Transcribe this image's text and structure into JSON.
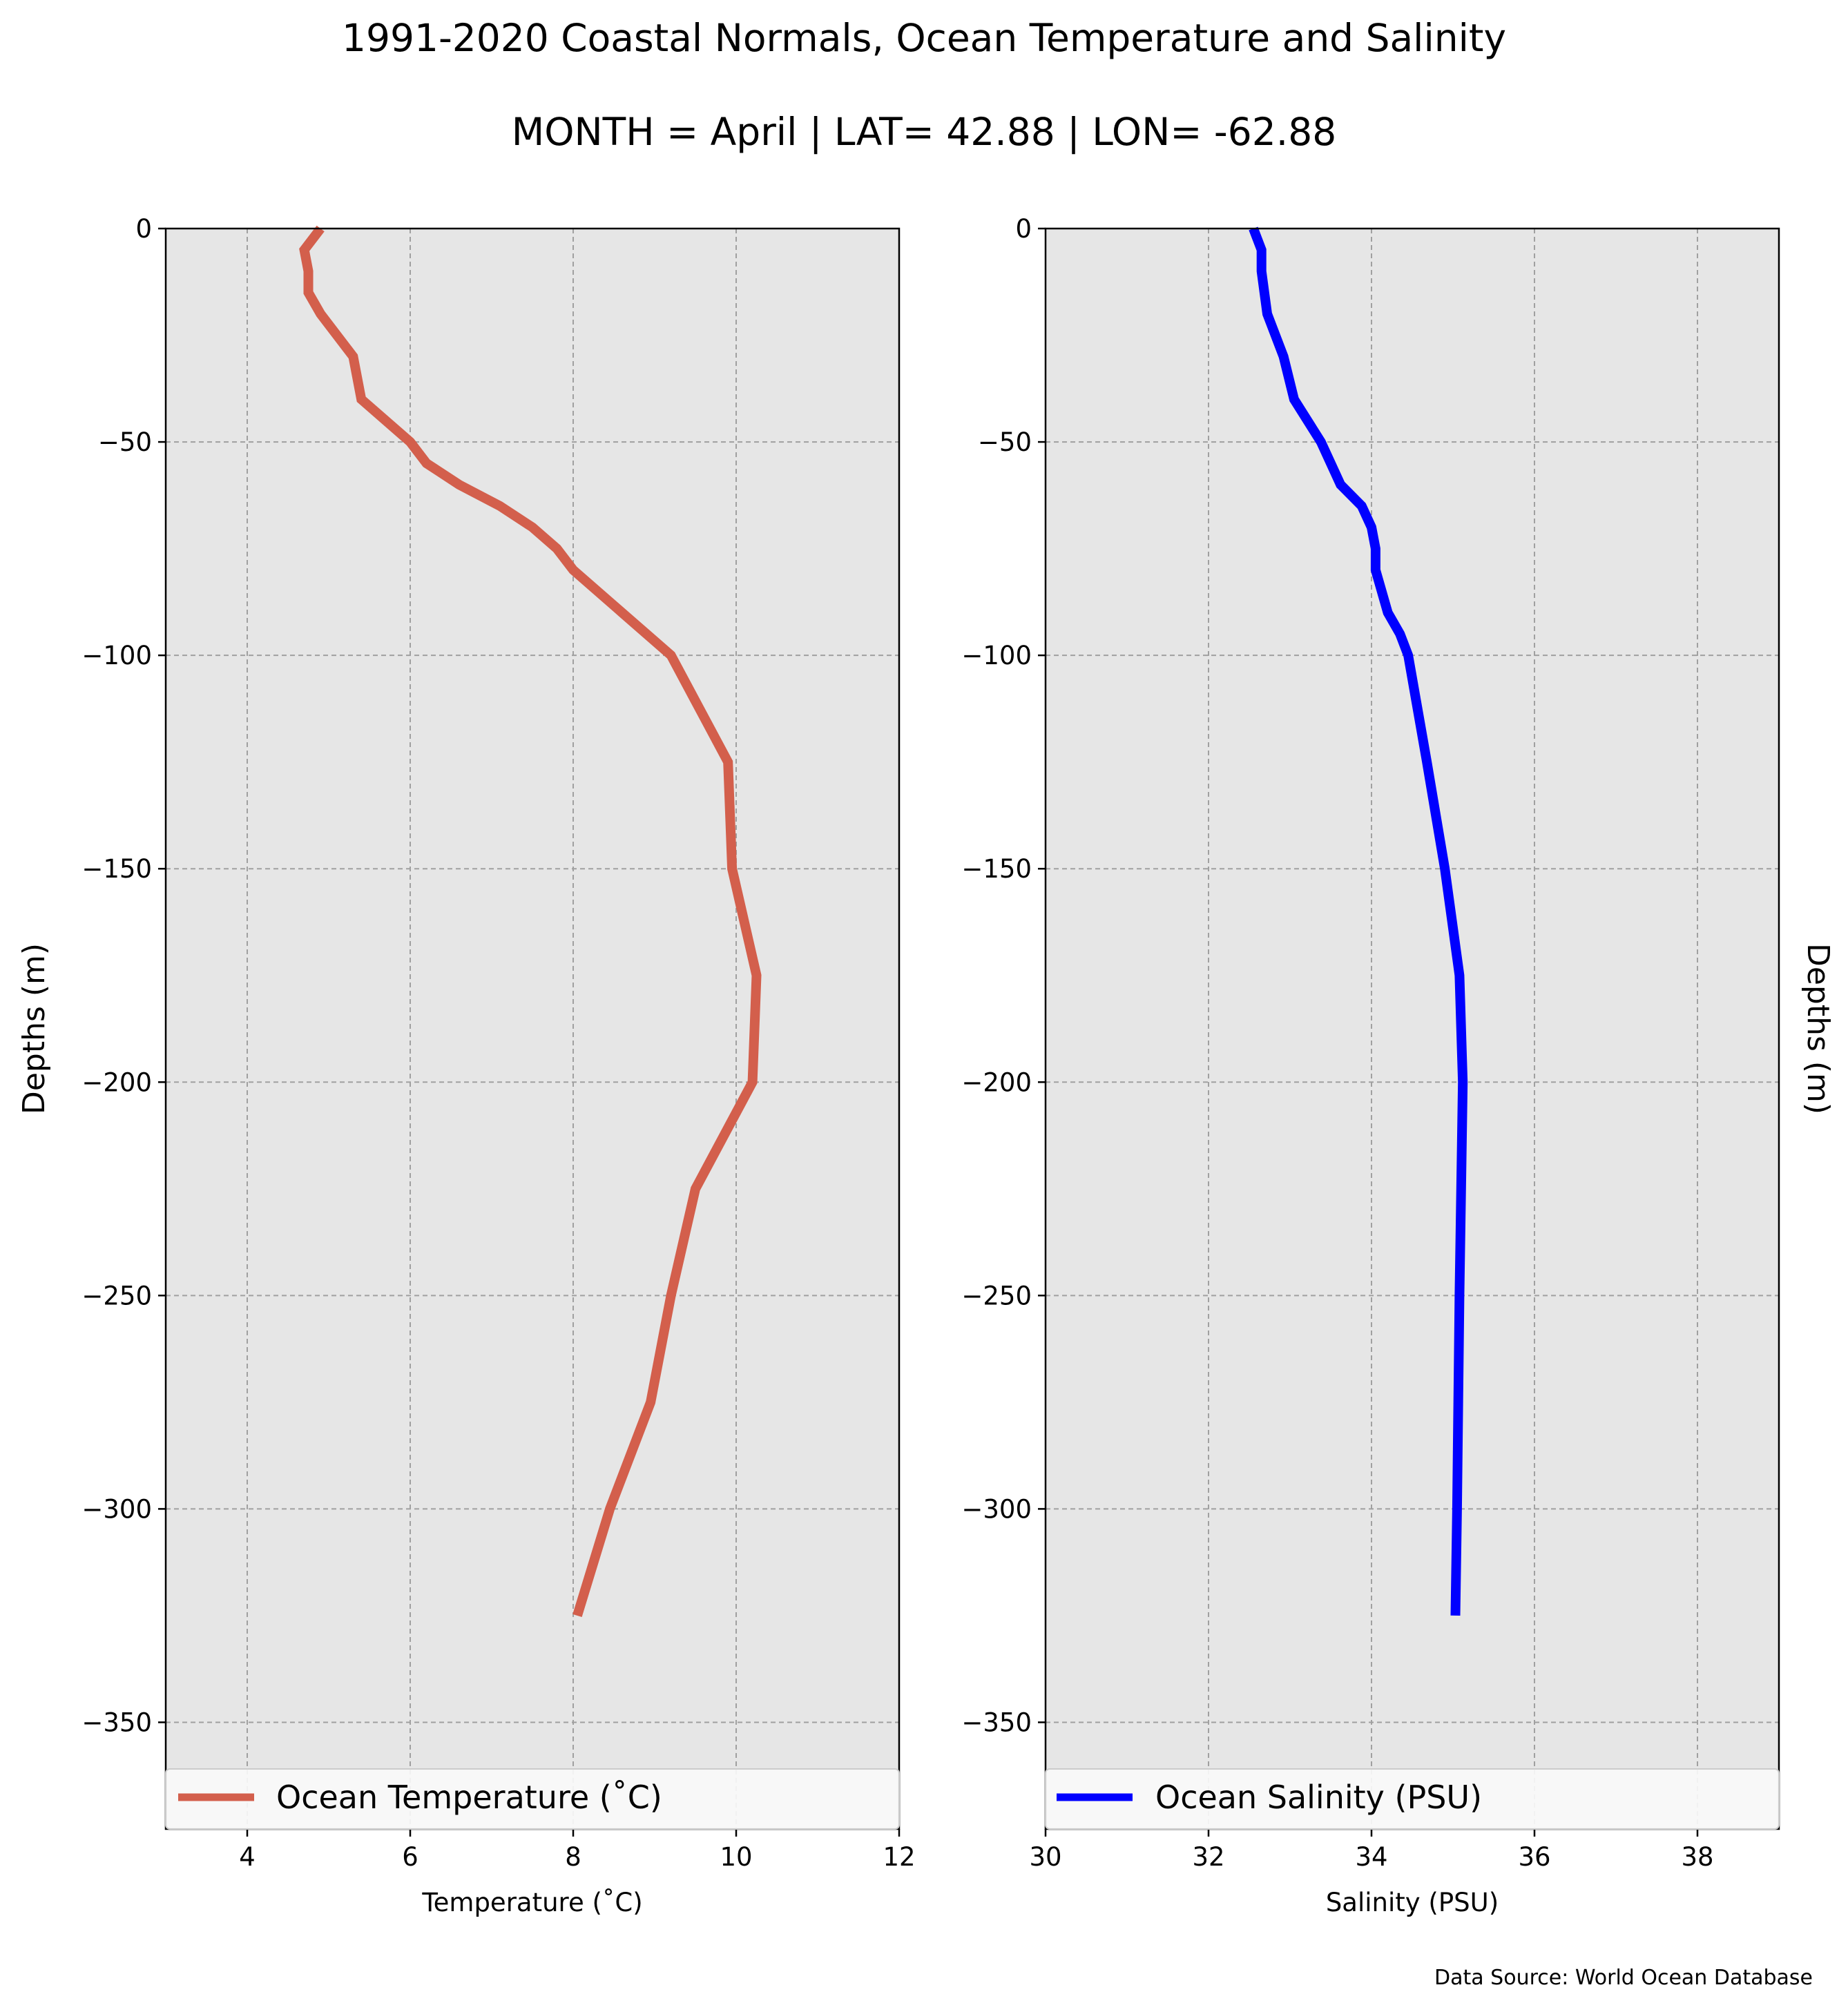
{
  "figure": {
    "title": "1991-2020 Coastal Normals, Ocean Temperature and Salinity",
    "subtitle": "MONTH = April | LAT= 42.88 | LON= -62.88",
    "source": "Data Source: World Ocean Database"
  },
  "chart_data": [
    {
      "type": "line",
      "orientation": "profile",
      "xlabel": "Temperature ($^\\circ$C)",
      "xlabel_display": "Temperature (˚C)",
      "ylabel": "Depths (m)",
      "xlim": [
        3,
        12
      ],
      "ylim": [
        -375,
        0
      ],
      "xticks": [
        4,
        6,
        8,
        10,
        12
      ],
      "yticks": [
        0,
        -50,
        -100,
        -150,
        -200,
        -250,
        -300,
        -350
      ],
      "ytick_labels": [
        "0",
        "−50",
        "−100",
        "−150",
        "−200",
        "−250",
        "−300",
        "−350"
      ],
      "grid": true,
      "background": "#e6e6e6",
      "legend_position": "bottom",
      "series": [
        {
          "name": "Ocean Temperature (˚C)",
          "color": "#d35f4c",
          "x": [
            4.9,
            4.7,
            4.75,
            4.75,
            4.9,
            5.1,
            5.3,
            5.4,
            5.7,
            6.0,
            6.2,
            6.6,
            7.1,
            7.5,
            7.8,
            8.0,
            8.6,
            8.9,
            9.2,
            9.9,
            9.95,
            10.25,
            10.2,
            9.5,
            9.2,
            8.95,
            8.45,
            8.05
          ],
          "y": [
            0,
            -5,
            -10,
            -15,
            -20,
            -25,
            -30,
            -40,
            -45,
            -50,
            -55,
            -60,
            -65,
            -70,
            -75,
            -80,
            -90,
            -95,
            -100,
            -125,
            -150,
            -175,
            -200,
            -225,
            -250,
            -275,
            -300,
            -325
          ]
        }
      ]
    },
    {
      "type": "line",
      "orientation": "profile",
      "xlabel": "Salinity (PSU)",
      "ylabel": "Depths (m)",
      "xlim": [
        30,
        39
      ],
      "ylim": [
        -375,
        0
      ],
      "xticks": [
        30,
        32,
        34,
        36,
        38
      ],
      "yticks": [
        0,
        -50,
        -100,
        -150,
        -200,
        -250,
        -300,
        -350
      ],
      "ytick_labels": [
        "0",
        "−50",
        "−100",
        "−150",
        "−200",
        "−250",
        "−300",
        "−350"
      ],
      "grid": true,
      "background": "#e6e6e6",
      "legend_position": "bottom",
      "series": [
        {
          "name": "Ocean Salinity (PSU)",
          "color": "#0000ff",
          "x": [
            32.55,
            32.65,
            32.65,
            32.72,
            32.82,
            32.92,
            33.05,
            33.38,
            33.62,
            33.88,
            34.0,
            34.05,
            34.05,
            34.2,
            34.35,
            34.45,
            34.68,
            34.9,
            35.08,
            35.12,
            35.1,
            35.08,
            35.05,
            35.03
          ],
          "y": [
            0,
            -5,
            -10,
            -20,
            -25,
            -30,
            -40,
            -50,
            -60,
            -65,
            -70,
            -75,
            -80,
            -90,
            -95,
            -100,
            -125,
            -150,
            -175,
            -200,
            -225,
            -250,
            -300,
            -325
          ]
        }
      ]
    }
  ]
}
